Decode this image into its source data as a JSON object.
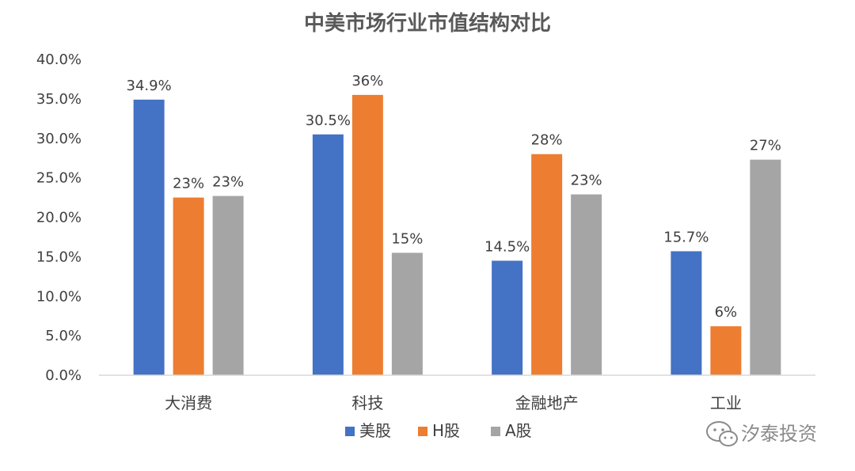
{
  "chart_data": {
    "type": "bar",
    "title": "中美市场行业市值结构对比",
    "categories": [
      "大消费",
      "科技",
      "金融地产",
      "工业"
    ],
    "series": [
      {
        "name": "美股",
        "color": "#4472C4",
        "values": [
          34.9,
          30.5,
          14.5,
          15.7
        ],
        "labels": [
          "34.9%",
          "30.5%",
          "14.5%",
          "15.7%"
        ]
      },
      {
        "name": "H股",
        "color": "#ED7D31",
        "values": [
          22.5,
          35.5,
          28.0,
          6.2
        ],
        "labels": [
          "23%",
          "36%",
          "28%",
          "6%"
        ]
      },
      {
        "name": "A股",
        "color": "#A5A5A5",
        "values": [
          22.7,
          15.5,
          22.9,
          27.3
        ],
        "labels": [
          "23%",
          "15%",
          "23%",
          "27%"
        ]
      }
    ],
    "ylim": [
      0,
      40
    ],
    "yticks": [
      0,
      5,
      10,
      15,
      20,
      25,
      30,
      35,
      40
    ],
    "ytick_labels": [
      "0.0%",
      "5.0%",
      "10.0%",
      "15.0%",
      "20.0%",
      "25.0%",
      "30.0%",
      "35.0%",
      "40.0%"
    ],
    "xlabel": "",
    "ylabel": "",
    "grid": false,
    "legend_position": "bottom"
  },
  "watermark": {
    "text": "汐泰投资",
    "icon": "wechat-icon"
  }
}
